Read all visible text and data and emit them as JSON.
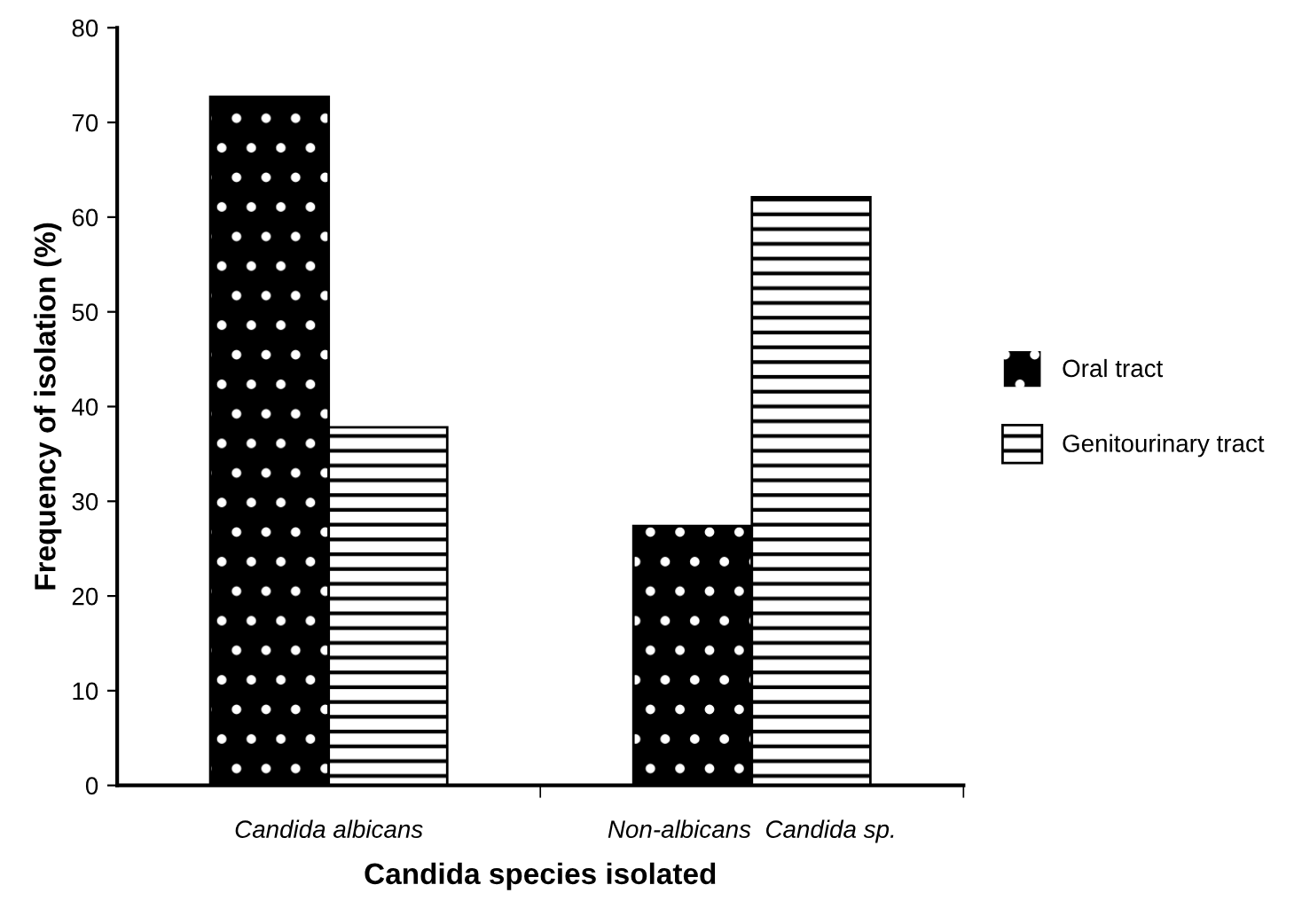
{
  "chart_data": {
    "type": "bar",
    "xlabel": "Candida species isolated",
    "ylabel": "Frequency of isolation (%)",
    "categories": [
      "Candida albicans",
      "Non-albicans  Candida sp."
    ],
    "series": [
      {
        "name": "Oral tract",
        "color": "#000000",
        "values": [
          72.7,
          27.4
        ]
      },
      {
        "name": "Genitourinary tract",
        "color": "#ffffff",
        "values": [
          37.8,
          62.1
        ]
      }
    ],
    "ylim": [
      0,
      80
    ],
    "yticks": [
      0,
      10,
      20,
      30,
      40,
      50,
      60,
      70,
      80
    ],
    "grid": false,
    "legend": "right"
  }
}
